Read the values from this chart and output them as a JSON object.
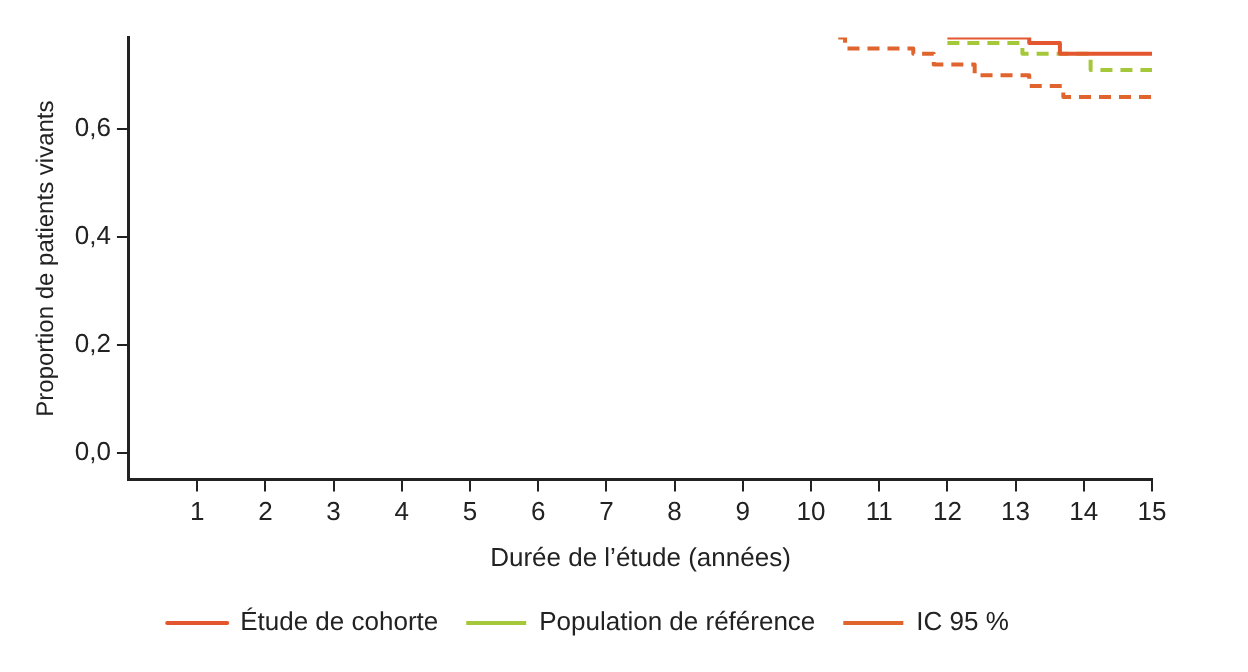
{
  "chart_data": {
    "type": "step",
    "xlabel": "Durée de l’étude (années)",
    "ylabel": "Proportion de patients vivants",
    "xlim": [
      0,
      15
    ],
    "xticks": [
      1,
      2,
      3,
      4,
      5,
      6,
      7,
      8,
      9,
      10,
      11,
      12,
      13,
      14,
      15
    ],
    "ylim": [
      -0.05,
      0.77
    ],
    "yticks": [
      {
        "value": 0,
        "label": "0,0"
      },
      {
        "value": 0.2,
        "label": "0,2"
      },
      {
        "value": 0.4,
        "label": "0,4"
      },
      {
        "value": 0.6,
        "label": "0,6"
      }
    ],
    "grid": false,
    "legend": "bottom",
    "series": [
      {
        "name": "Étude de cohorte",
        "color": "#e4572e",
        "line_style": "solid",
        "x": [
          12,
          13.2,
          13.65,
          15
        ],
        "values": [
          0.77,
          0.76,
          0.74,
          0.74
        ]
      },
      {
        "name": "Population de référence",
        "color": "#a5c83a",
        "line_style": "dashed",
        "x": [
          12,
          13.1,
          14.1,
          15
        ],
        "values": [
          0.76,
          0.74,
          0.71,
          0.71
        ]
      },
      {
        "name": "IC 95 %",
        "color": "#e0642e",
        "line_style": "dashed",
        "x": [
          10.4,
          10.5,
          11.5,
          11.8,
          12.4,
          13.2,
          13.7,
          15
        ],
        "values": [
          0.77,
          0.75,
          0.74,
          0.72,
          0.7,
          0.68,
          0.66,
          0.66
        ]
      }
    ]
  }
}
